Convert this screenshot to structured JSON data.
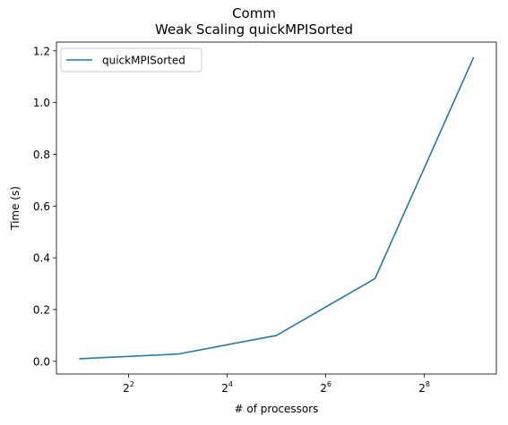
{
  "chart_data": {
    "type": "line",
    "title": "Comm",
    "subtitle": "Weak Scaling quickMPISorted",
    "xlabel": "# of processors",
    "ylabel": "Time (s)",
    "xscale": "log2",
    "x": [
      2,
      8,
      32,
      128,
      512
    ],
    "series": [
      {
        "name": "quickMPISorted",
        "color": "#1f77b4",
        "values": [
          0.01,
          0.028,
          0.1,
          0.32,
          1.175
        ]
      }
    ],
    "xticks": [
      {
        "value": 4,
        "base": "2",
        "exp": "2"
      },
      {
        "value": 16,
        "base": "2",
        "exp": "4"
      },
      {
        "value": 64,
        "base": "2",
        "exp": "6"
      },
      {
        "value": 256,
        "base": "2",
        "exp": "8"
      }
    ],
    "yticks": [
      "0.0",
      "0.2",
      "0.4",
      "0.6",
      "0.8",
      "1.0",
      "1.2"
    ],
    "xlim": [
      1.45,
      705
    ],
    "ylim": [
      -0.049,
      1.234
    ],
    "legend": "top-left",
    "grid": false
  }
}
